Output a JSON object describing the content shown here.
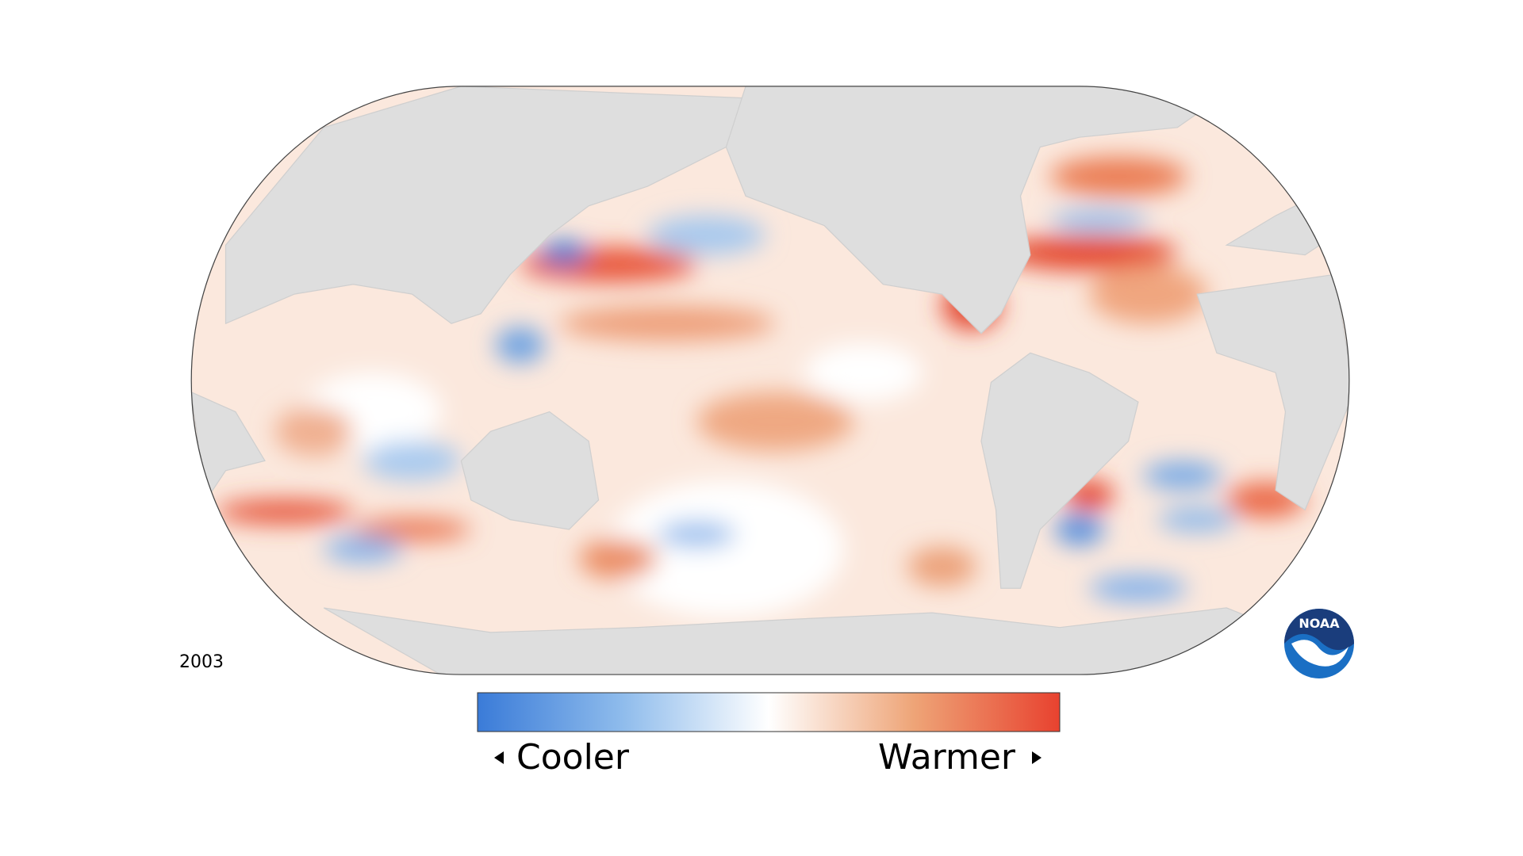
{
  "year": "2003",
  "legend": {
    "cooler": "Cooler",
    "warmer": "Warmer"
  },
  "logo": "NOAA"
}
